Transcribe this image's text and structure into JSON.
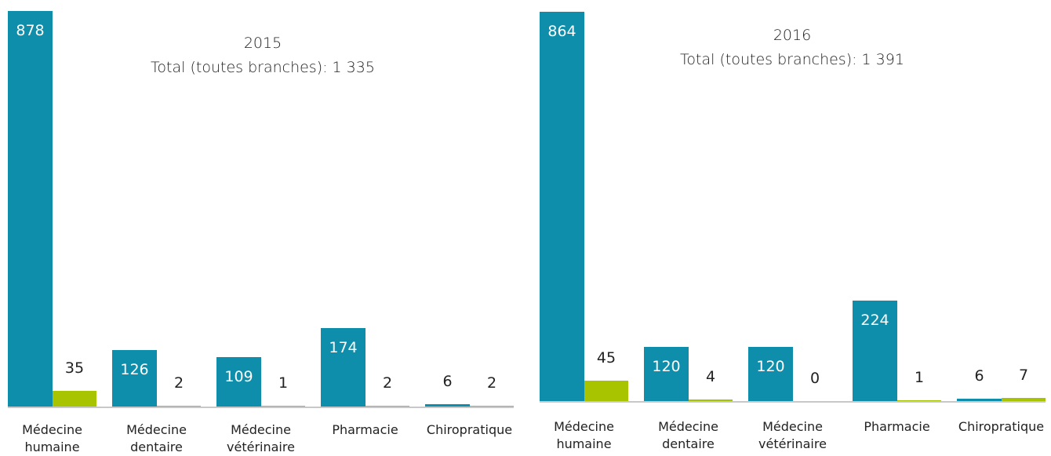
{
  "chart_data": [
    {
      "type": "bar",
      "title": "2015",
      "subtitle": "Total (toutes branches): 1 335",
      "categories": [
        "Médecine humaine",
        "Médecine dentaire",
        "Médecine vétérinaire",
        "Pharmacie",
        "Chiropratique"
      ],
      "series": [
        {
          "color": "#0e8eaa",
          "values": [
            878,
            126,
            109,
            174,
            6
          ]
        },
        {
          "color": "#a8c400",
          "values": [
            35,
            2,
            1,
            2,
            2
          ]
        }
      ]
    },
    {
      "type": "bar",
      "title": "2016",
      "subtitle": "Total (toutes branches): 1 391",
      "categories": [
        "Médecine humaine",
        "Médecine dentaire",
        "Médecine vétérinaire",
        "Pharmacie",
        "Chiropratique"
      ],
      "series": [
        {
          "color": "#0e8eaa",
          "values": [
            864,
            120,
            120,
            224,
            6
          ]
        },
        {
          "color": "#a8c400",
          "values": [
            45,
            4,
            0,
            1,
            7
          ]
        }
      ]
    }
  ]
}
